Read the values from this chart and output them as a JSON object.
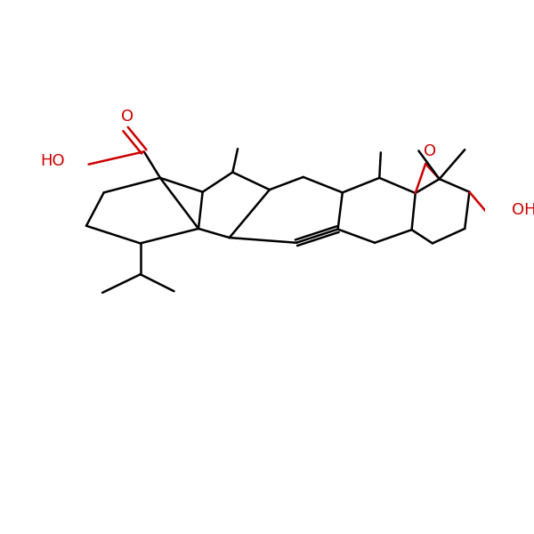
{
  "bg_color": "#ffffff",
  "bond_color": "#000000",
  "o_color": "#cc0000",
  "line_width": 1.8,
  "figsize": [
    6.0,
    6.0
  ],
  "dpi": 100,
  "xlim": [
    -5.5,
    5.5
  ],
  "ylim": [
    -4.0,
    3.5
  ],
  "label_fontsize": 12
}
